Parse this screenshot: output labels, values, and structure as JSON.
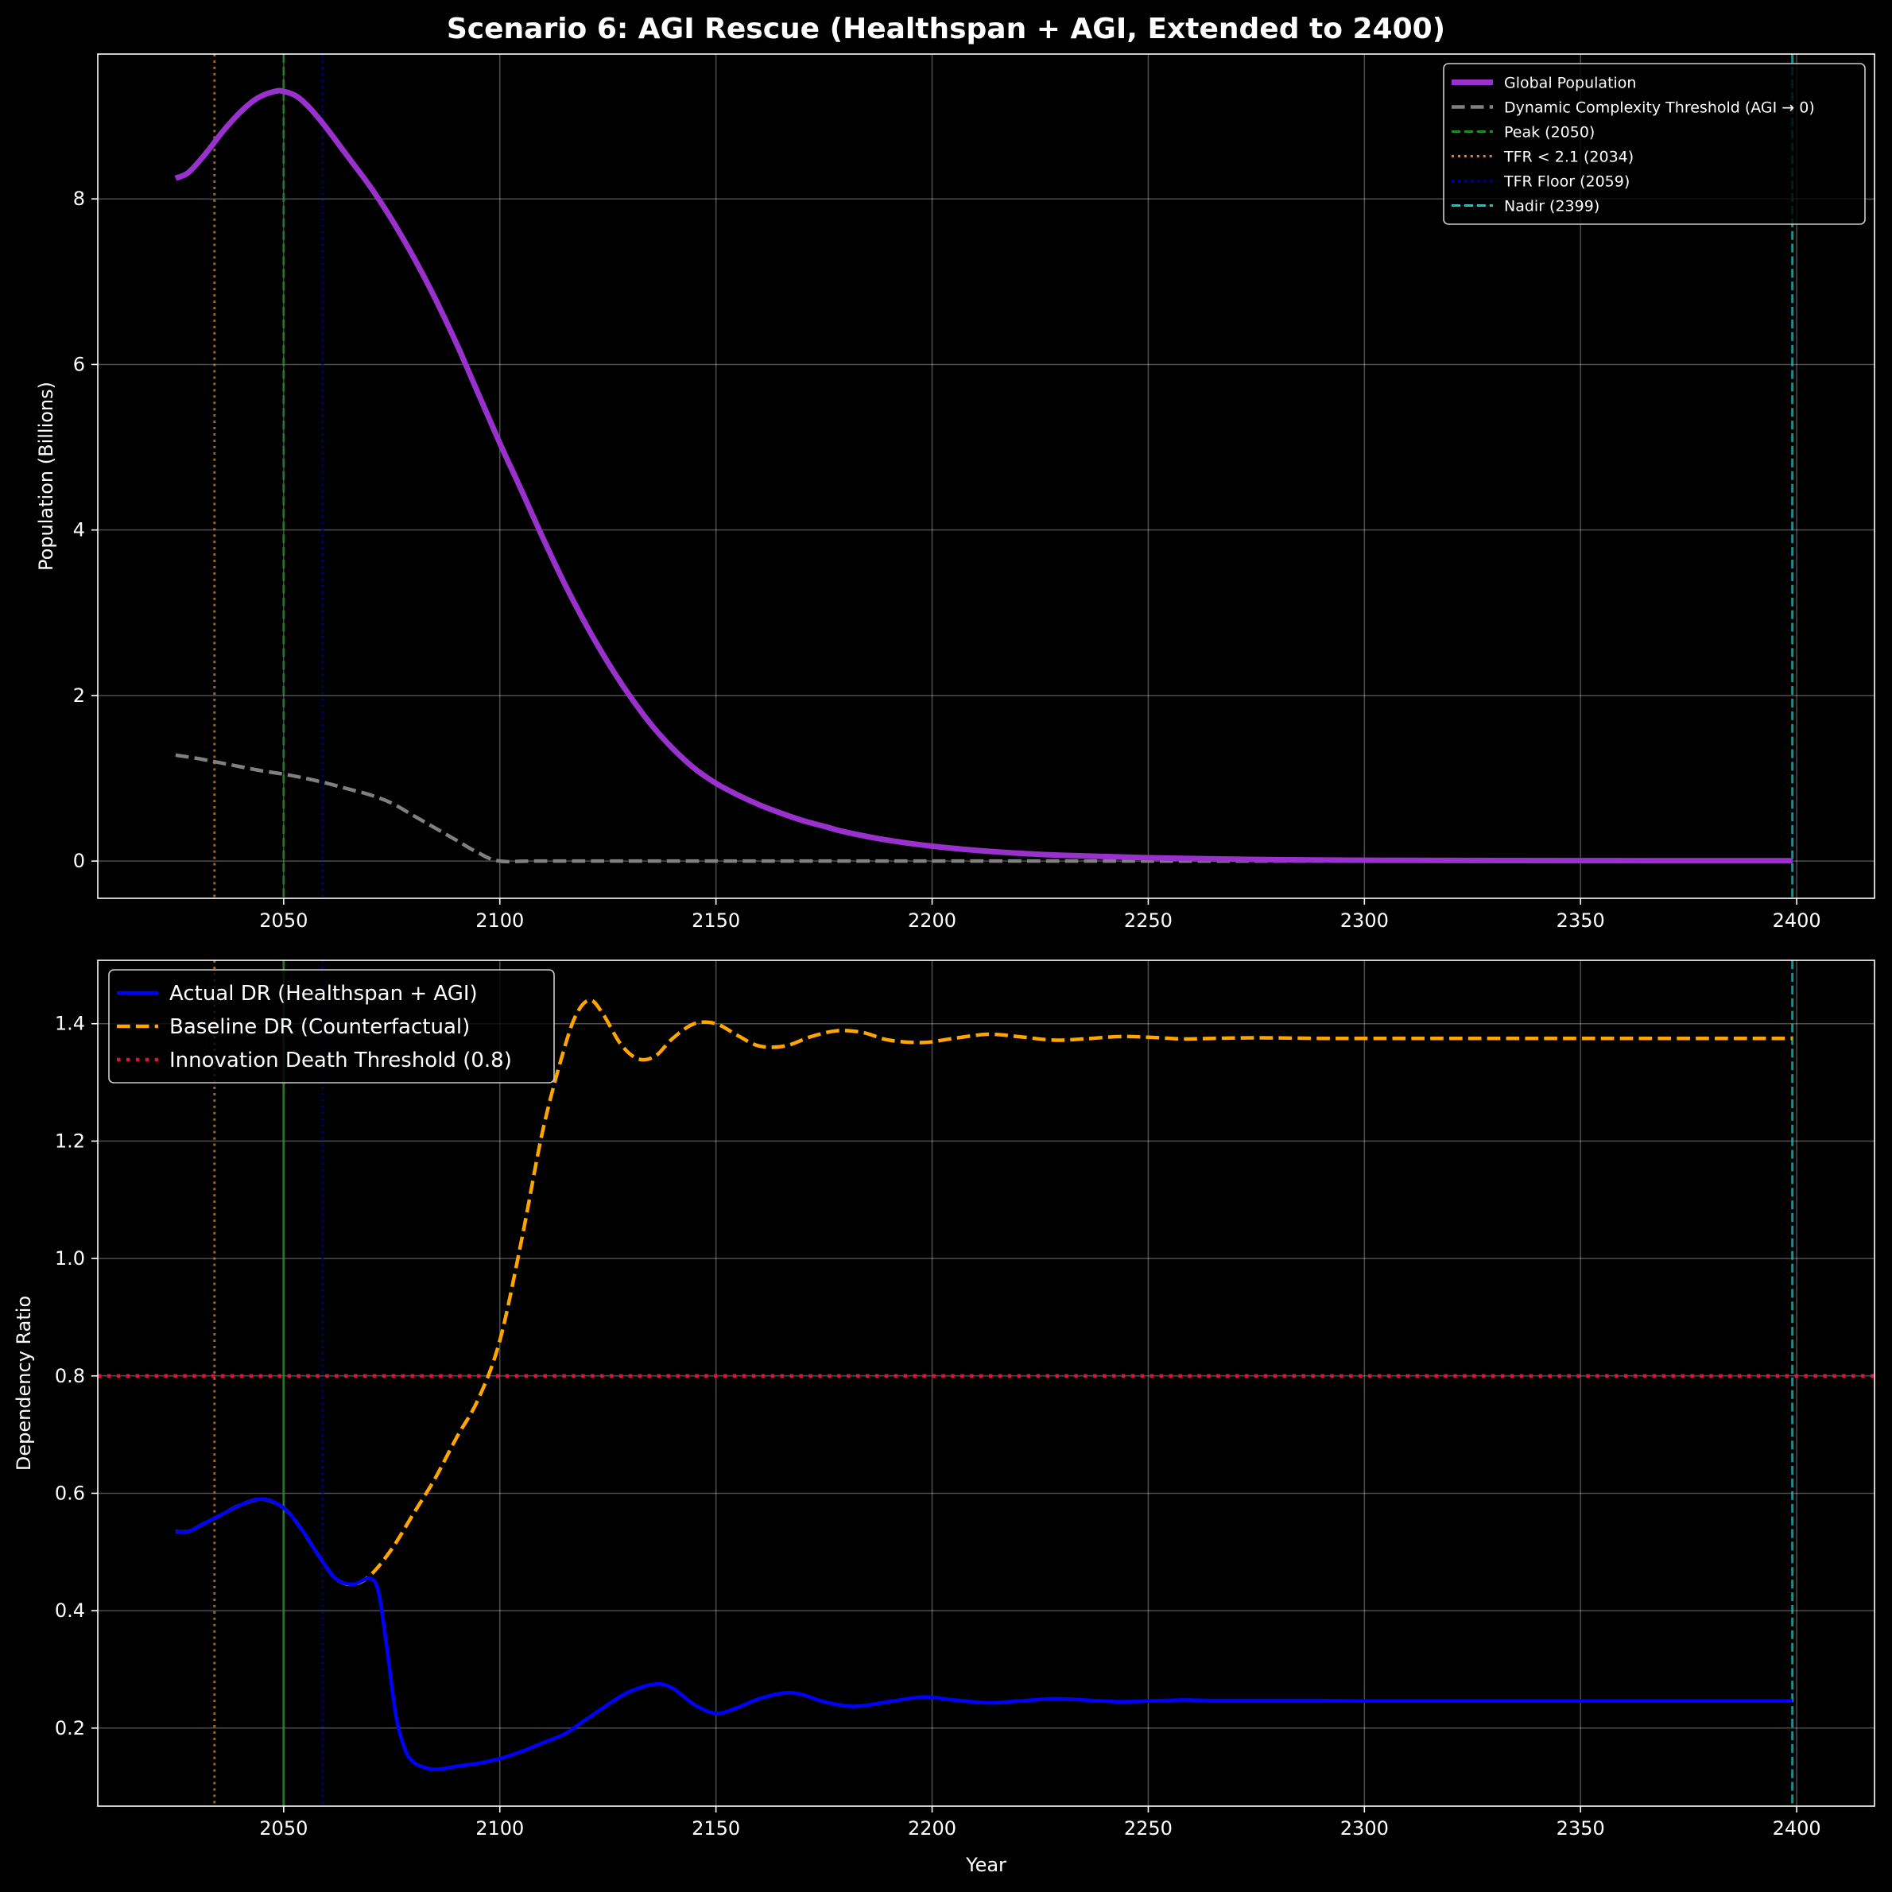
{
  "figure": {
    "title": "Scenario 6: AGI Rescue (Healthspan + AGI, Extended to 2400)",
    "background": "#000000"
  },
  "chart_data": [
    {
      "type": "line",
      "ylabel": "Population (Billions)",
      "xlabel": "",
      "xlim": [
        2007,
        2418
      ],
      "ylim": [
        -0.45,
        9.75
      ],
      "xticks": [
        2050,
        2100,
        2150,
        2200,
        2250,
        2300,
        2350,
        2400
      ],
      "yticks": [
        0,
        2,
        4,
        6,
        8
      ],
      "grid": true,
      "legend_position": "top-right",
      "series": [
        {
          "name": "Global Population",
          "color": "#9932CC",
          "style": "solid",
          "x": [
            2025,
            2028,
            2032,
            2036,
            2040,
            2044,
            2048,
            2050,
            2053,
            2056,
            2060,
            2065,
            2070,
            2075,
            2080,
            2085,
            2090,
            2095,
            2100,
            2105,
            2110,
            2115,
            2120,
            2125,
            2130,
            2135,
            2140,
            2145,
            2150,
            2155,
            2160,
            2165,
            2170,
            2175,
            2180,
            2190,
            2200,
            2210,
            2220,
            2230,
            2250,
            2275,
            2300,
            2350,
            2399
          ],
          "y": [
            8.25,
            8.32,
            8.55,
            8.82,
            9.05,
            9.22,
            9.3,
            9.3,
            9.24,
            9.1,
            8.85,
            8.5,
            8.15,
            7.75,
            7.3,
            6.8,
            6.25,
            5.65,
            5.05,
            4.48,
            3.9,
            3.35,
            2.85,
            2.4,
            2.0,
            1.65,
            1.36,
            1.12,
            0.94,
            0.8,
            0.68,
            0.58,
            0.49,
            0.42,
            0.35,
            0.25,
            0.18,
            0.13,
            0.095,
            0.07,
            0.04,
            0.02,
            0.01,
            0.005,
            0.003
          ]
        },
        {
          "name": "Dynamic Complexity Threshold (AGI → 0)",
          "color": "#808080",
          "style": "dashed",
          "x": [
            2025,
            2030,
            2035,
            2040,
            2045,
            2050,
            2055,
            2060,
            2065,
            2070,
            2075,
            2080,
            2085,
            2090,
            2095,
            2100,
            2110,
            2150,
            2200,
            2250,
            2300,
            2350,
            2399
          ],
          "y": [
            1.28,
            1.24,
            1.19,
            1.14,
            1.09,
            1.05,
            1.0,
            0.94,
            0.87,
            0.8,
            0.7,
            0.55,
            0.4,
            0.25,
            0.1,
            0.0,
            0.0,
            0.0,
            0.0,
            0.0,
            0.0,
            0.0,
            0.0
          ]
        }
      ],
      "vlines": [
        {
          "name": "Peak (2050)",
          "x": 2050,
          "color": "#228B22",
          "style": "dashed"
        },
        {
          "name": "TFR < 2.1 (2034)",
          "x": 2034,
          "color": "#CD853F",
          "style": "dotted"
        },
        {
          "name": "TFR Floor (2059)",
          "x": 2059,
          "color": "#00008B",
          "style": "dotted"
        },
        {
          "name": "Nadir (2399)",
          "x": 2399,
          "color": "#00CED1",
          "style": "dashed"
        }
      ]
    },
    {
      "type": "line",
      "ylabel": "Dependency Ratio",
      "xlabel": "Year",
      "xlim": [
        2007,
        2418
      ],
      "ylim": [
        0.067,
        1.508
      ],
      "xticks": [
        2050,
        2100,
        2150,
        2200,
        2250,
        2300,
        2350,
        2400
      ],
      "yticks": [
        0.2,
        0.4,
        0.6,
        0.8,
        1.0,
        1.2,
        1.4
      ],
      "grid": true,
      "legend_position": "top-left",
      "series": [
        {
          "name": "Actual DR (Healthspan + AGI)",
          "color": "#0000FF",
          "style": "solid",
          "x": [
            2025,
            2028,
            2032,
            2036,
            2040,
            2045,
            2050,
            2054,
            2058,
            2062,
            2066,
            2070,
            2072,
            2074,
            2076,
            2078,
            2080,
            2083,
            2086,
            2090,
            2095,
            2100,
            2105,
            2110,
            2115,
            2120,
            2125,
            2130,
            2136,
            2140,
            2145,
            2150,
            2155,
            2160,
            2166,
            2170,
            2175,
            2182,
            2190,
            2198,
            2205,
            2213,
            2220,
            2228,
            2235,
            2243,
            2250,
            2258,
            2265,
            2275,
            2290,
            2300,
            2320,
            2350,
            2399
          ],
          "y": [
            0.535,
            0.535,
            0.55,
            0.565,
            0.58,
            0.59,
            0.575,
            0.54,
            0.495,
            0.455,
            0.445,
            0.455,
            0.43,
            0.33,
            0.22,
            0.165,
            0.142,
            0.132,
            0.13,
            0.135,
            0.14,
            0.148,
            0.16,
            0.175,
            0.19,
            0.215,
            0.24,
            0.262,
            0.275,
            0.268,
            0.24,
            0.225,
            0.235,
            0.25,
            0.26,
            0.257,
            0.245,
            0.237,
            0.245,
            0.253,
            0.248,
            0.243,
            0.246,
            0.25,
            0.248,
            0.245,
            0.246,
            0.248,
            0.247,
            0.247,
            0.247,
            0.246,
            0.246,
            0.246,
            0.246
          ]
        },
        {
          "name": "Baseline DR (Counterfactual)",
          "color": "#FFA500",
          "style": "dashed",
          "x": [
            2025,
            2028,
            2032,
            2036,
            2040,
            2045,
            2050,
            2054,
            2058,
            2062,
            2066,
            2070,
            2075,
            2080,
            2085,
            2090,
            2095,
            2100,
            2105,
            2110,
            2115,
            2118,
            2121,
            2124,
            2128,
            2132,
            2136,
            2140,
            2145,
            2150,
            2155,
            2160,
            2166,
            2172,
            2178,
            2184,
            2190,
            2198,
            2205,
            2213,
            2220,
            2228,
            2235,
            2243,
            2250,
            2258,
            2265,
            2275,
            2290,
            2300,
            2320,
            2350,
            2399
          ],
          "y": [
            0.535,
            0.535,
            0.55,
            0.565,
            0.58,
            0.59,
            0.575,
            0.54,
            0.495,
            0.455,
            0.445,
            0.46,
            0.505,
            0.565,
            0.625,
            0.695,
            0.76,
            0.86,
            1.03,
            1.22,
            1.36,
            1.42,
            1.44,
            1.415,
            1.365,
            1.34,
            1.345,
            1.375,
            1.4,
            1.4,
            1.38,
            1.362,
            1.362,
            1.378,
            1.388,
            1.385,
            1.372,
            1.368,
            1.375,
            1.382,
            1.378,
            1.372,
            1.374,
            1.378,
            1.377,
            1.374,
            1.375,
            1.376,
            1.375,
            1.375,
            1.375,
            1.375,
            1.375
          ]
        }
      ],
      "hlines": [
        {
          "name": "Innovation Death Threshold (0.8)",
          "y": 0.8,
          "color": "#DC143C",
          "style": "dotted"
        }
      ],
      "vlines": [
        {
          "x": 2050,
          "color": "#228B22",
          "style": "solid"
        },
        {
          "x": 2034,
          "color": "#CD853F",
          "style": "dotted"
        },
        {
          "x": 2059,
          "color": "#00008B",
          "style": "dotted"
        },
        {
          "x": 2399,
          "color": "#00CED1",
          "style": "dashed"
        }
      ]
    }
  ]
}
